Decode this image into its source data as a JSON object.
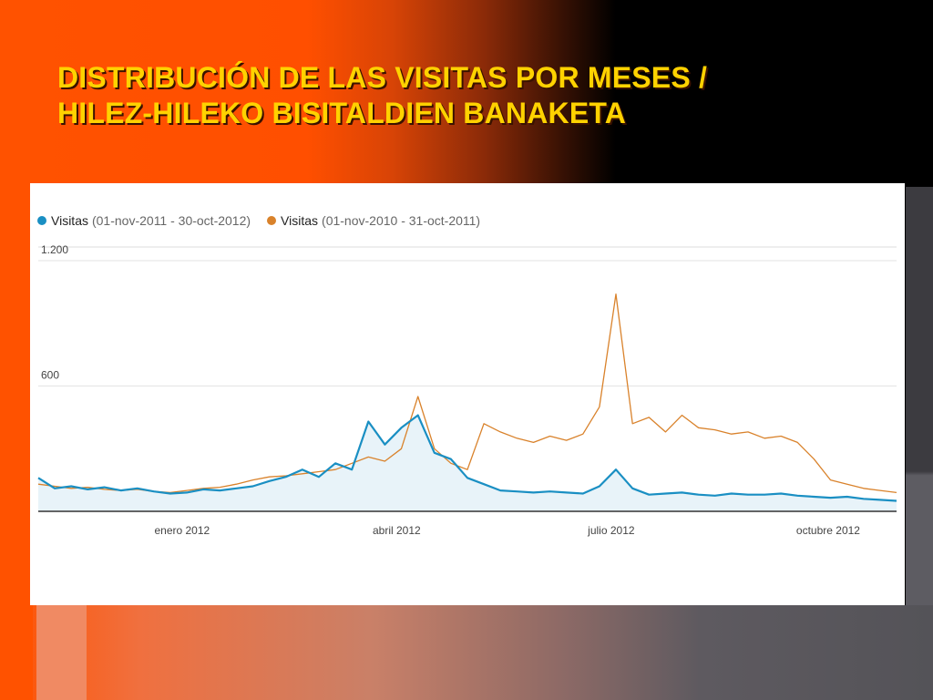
{
  "slide": {
    "title_line1": "DISTRIBUCIÓN DE LAS VISITAS POR MESES /",
    "title_line2": "HILEZ-HILEKO BISITALDIEN BANAKETA",
    "title_color": "#ffd200"
  },
  "chart_data": {
    "type": "line",
    "ylim": [
      0,
      1200
    ],
    "y_ticks": [
      {
        "value": 1200,
        "label": "1.200"
      },
      {
        "value": 600,
        "label": "600"
      }
    ],
    "x_ticks": [
      {
        "date": "2012-01-01",
        "label": "enero 2012"
      },
      {
        "date": "2012-04-01",
        "label": "abril 2012"
      },
      {
        "date": "2012-07-01",
        "label": "julio 2012"
      },
      {
        "date": "2012-10-01",
        "label": "octubre 2012"
      }
    ],
    "legend_position": "top-left",
    "grid": true,
    "series": [
      {
        "name": "Visitas",
        "range": "(01-nov-2011 - 30-oct-2012)",
        "color": "#1a8fc3",
        "points": [
          [
            "2011-11-01",
            160
          ],
          [
            "2011-11-08",
            110
          ],
          [
            "2011-11-15",
            120
          ],
          [
            "2011-11-22",
            105
          ],
          [
            "2011-11-29",
            115
          ],
          [
            "2011-12-06",
            100
          ],
          [
            "2011-12-13",
            110
          ],
          [
            "2011-12-20",
            95
          ],
          [
            "2011-12-27",
            85
          ],
          [
            "2012-01-03",
            90
          ],
          [
            "2012-01-10",
            105
          ],
          [
            "2012-01-17",
            100
          ],
          [
            "2012-01-24",
            110
          ],
          [
            "2012-01-31",
            120
          ],
          [
            "2012-02-07",
            145
          ],
          [
            "2012-02-14",
            165
          ],
          [
            "2012-02-21",
            200
          ],
          [
            "2012-02-28",
            165
          ],
          [
            "2012-03-06",
            230
          ],
          [
            "2012-03-13",
            200
          ],
          [
            "2012-03-20",
            430
          ],
          [
            "2012-03-27",
            320
          ],
          [
            "2012-04-03",
            400
          ],
          [
            "2012-04-10",
            460
          ],
          [
            "2012-04-17",
            280
          ],
          [
            "2012-04-24",
            250
          ],
          [
            "2012-05-01",
            160
          ],
          [
            "2012-05-08",
            130
          ],
          [
            "2012-05-15",
            100
          ],
          [
            "2012-05-22",
            95
          ],
          [
            "2012-05-29",
            90
          ],
          [
            "2012-06-05",
            95
          ],
          [
            "2012-06-12",
            90
          ],
          [
            "2012-06-19",
            85
          ],
          [
            "2012-06-26",
            120
          ],
          [
            "2012-07-03",
            200
          ],
          [
            "2012-07-10",
            110
          ],
          [
            "2012-07-17",
            80
          ],
          [
            "2012-07-24",
            85
          ],
          [
            "2012-07-31",
            90
          ],
          [
            "2012-08-07",
            80
          ],
          [
            "2012-08-14",
            75
          ],
          [
            "2012-08-21",
            85
          ],
          [
            "2012-08-28",
            80
          ],
          [
            "2012-09-04",
            80
          ],
          [
            "2012-09-11",
            85
          ],
          [
            "2012-09-18",
            75
          ],
          [
            "2012-09-25",
            70
          ],
          [
            "2012-10-02",
            65
          ],
          [
            "2012-10-09",
            70
          ],
          [
            "2012-10-16",
            60
          ],
          [
            "2012-10-23",
            55
          ],
          [
            "2012-10-30",
            50
          ]
        ]
      },
      {
        "name": "Visitas",
        "range": "(01-nov-2010 - 31-oct-2011)",
        "color": "#d9822b",
        "points": [
          [
            "2011-11-01",
            130
          ],
          [
            "2011-11-08",
            120
          ],
          [
            "2011-11-15",
            110
          ],
          [
            "2011-11-22",
            115
          ],
          [
            "2011-11-29",
            105
          ],
          [
            "2011-12-06",
            100
          ],
          [
            "2011-12-13",
            105
          ],
          [
            "2011-12-20",
            95
          ],
          [
            "2011-12-27",
            90
          ],
          [
            "2012-01-03",
            100
          ],
          [
            "2012-01-10",
            110
          ],
          [
            "2012-01-17",
            115
          ],
          [
            "2012-01-24",
            130
          ],
          [
            "2012-01-31",
            150
          ],
          [
            "2012-02-07",
            165
          ],
          [
            "2012-02-14",
            170
          ],
          [
            "2012-02-21",
            180
          ],
          [
            "2012-02-28",
            190
          ],
          [
            "2012-03-06",
            200
          ],
          [
            "2012-03-13",
            230
          ],
          [
            "2012-03-20",
            260
          ],
          [
            "2012-03-27",
            240
          ],
          [
            "2012-04-03",
            300
          ],
          [
            "2012-04-10",
            550
          ],
          [
            "2012-04-17",
            300
          ],
          [
            "2012-04-24",
            230
          ],
          [
            "2012-05-01",
            200
          ],
          [
            "2012-05-08",
            420
          ],
          [
            "2012-05-15",
            380
          ],
          [
            "2012-05-22",
            350
          ],
          [
            "2012-05-29",
            330
          ],
          [
            "2012-06-05",
            360
          ],
          [
            "2012-06-12",
            340
          ],
          [
            "2012-06-19",
            370
          ],
          [
            "2012-06-26",
            500
          ],
          [
            "2012-07-03",
            1040
          ],
          [
            "2012-07-10",
            420
          ],
          [
            "2012-07-17",
            450
          ],
          [
            "2012-07-24",
            380
          ],
          [
            "2012-07-31",
            460
          ],
          [
            "2012-08-07",
            400
          ],
          [
            "2012-08-14",
            390
          ],
          [
            "2012-08-21",
            370
          ],
          [
            "2012-08-28",
            380
          ],
          [
            "2012-09-04",
            350
          ],
          [
            "2012-09-11",
            360
          ],
          [
            "2012-09-18",
            330
          ],
          [
            "2012-09-25",
            250
          ],
          [
            "2012-10-02",
            150
          ],
          [
            "2012-10-09",
            130
          ],
          [
            "2012-10-16",
            110
          ],
          [
            "2012-10-23",
            100
          ],
          [
            "2012-10-30",
            90
          ]
        ]
      }
    ]
  }
}
